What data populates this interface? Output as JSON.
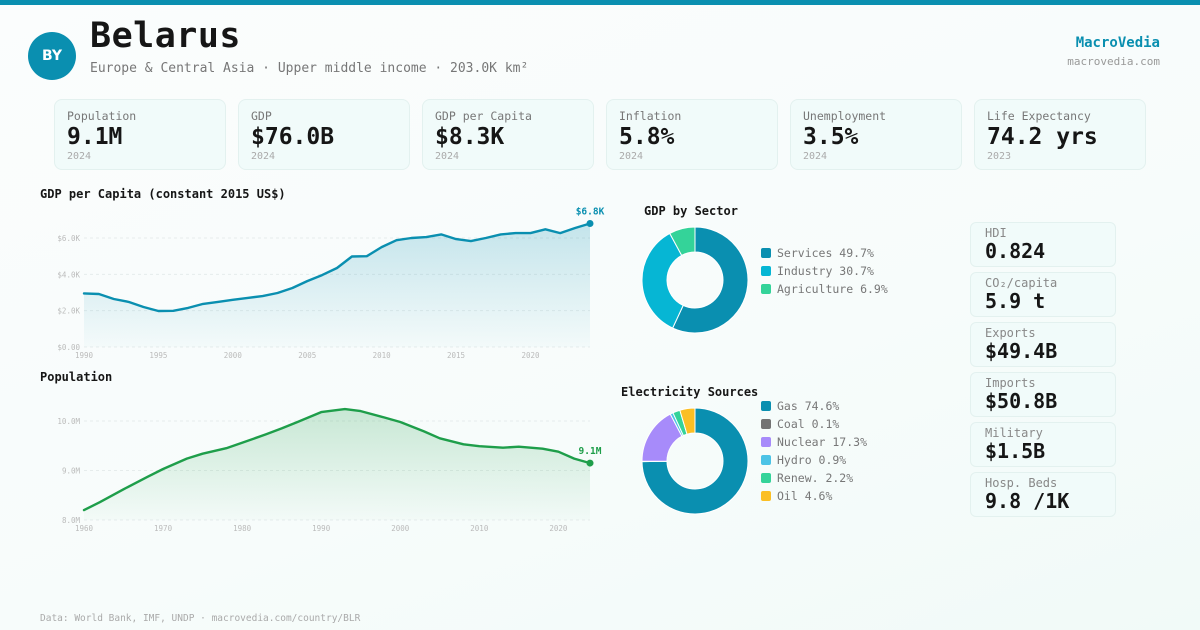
{
  "header": {
    "country_code": "BY",
    "country_name": "Belarus",
    "subtitle": "Europe & Central Asia · Upper middle income · 203.0K km²",
    "brand": "MacroVedia",
    "brand_url": "macrovedia.com",
    "accent_color": "#0a8fb0"
  },
  "kpis": [
    {
      "label": "Population",
      "value": "9.1M",
      "year": "2024"
    },
    {
      "label": "GDP",
      "value": "$76.0B",
      "year": "2024"
    },
    {
      "label": "GDP per Capita",
      "value": "$8.3K",
      "year": "2024"
    },
    {
      "label": "Inflation",
      "value": "5.8%",
      "year": "2024"
    },
    {
      "label": "Unemployment",
      "value": "3.5%",
      "year": "2024"
    },
    {
      "label": "Life Expectancy",
      "value": "74.2 yrs",
      "year": "2023"
    }
  ],
  "side_stats": [
    {
      "label": "HDI",
      "value": "0.824"
    },
    {
      "label": "CO₂/capita",
      "value": "5.9 t"
    },
    {
      "label": "Exports",
      "value": "$49.4B"
    },
    {
      "label": "Imports",
      "value": "$50.8B"
    },
    {
      "label": "Military",
      "value": "$1.5B"
    },
    {
      "label": "Hosp. Beds",
      "value": "9.8 /1K"
    }
  ],
  "footer": "Data: World Bank, IMF, UNDP · macrovedia.com/country/BLR",
  "chart_data": [
    {
      "id": "gdp_per_capita",
      "type": "area",
      "title": "GDP per Capita (constant 2015 US$)",
      "color": "#0a8fb0",
      "x": [
        1990,
        1991,
        1992,
        1993,
        1994,
        1995,
        1996,
        1997,
        1998,
        1999,
        2000,
        2001,
        2002,
        2003,
        2004,
        2005,
        2006,
        2007,
        2008,
        2009,
        2010,
        2011,
        2012,
        2013,
        2014,
        2015,
        2016,
        2017,
        2018,
        2019,
        2020,
        2021,
        2022,
        2023,
        2024
      ],
      "values": [
        2950,
        2920,
        2640,
        2480,
        2200,
        1980,
        1990,
        2150,
        2370,
        2480,
        2600,
        2700,
        2800,
        2970,
        3250,
        3630,
        3960,
        4350,
        4980,
        5000,
        5500,
        5880,
        6000,
        6050,
        6200,
        5940,
        5830,
        6000,
        6200,
        6270,
        6270,
        6480,
        6270,
        6550,
        6800
      ],
      "xticks": [
        "1990",
        "1995",
        "2000",
        "2005",
        "2010",
        "2015",
        "2020"
      ],
      "yticks": [
        "$0.00",
        "$2.0K",
        "$4.0K",
        "$6.0K"
      ],
      "ylim": [
        0,
        6000
      ],
      "end_label": "$6.8K",
      "grid": true
    },
    {
      "id": "population",
      "type": "area",
      "title": "Population",
      "color": "#1e9e4a",
      "x": [
        1960,
        1962,
        1965,
        1968,
        1970,
        1973,
        1975,
        1978,
        1980,
        1983,
        1985,
        1987,
        1990,
        1993,
        1995,
        1998,
        2000,
        2003,
        2005,
        2008,
        2010,
        2013,
        2015,
        2018,
        2020,
        2022,
        2024
      ],
      "values": [
        8.2,
        8.36,
        8.62,
        8.87,
        9.03,
        9.24,
        9.34,
        9.45,
        9.56,
        9.73,
        9.85,
        9.98,
        10.18,
        10.24,
        10.2,
        10.07,
        9.98,
        9.79,
        9.65,
        9.53,
        9.49,
        9.46,
        9.48,
        9.44,
        9.38,
        9.24,
        9.15
      ],
      "xticks": [
        "1960",
        "1970",
        "1980",
        "1990",
        "2000",
        "2010",
        "2020"
      ],
      "yticks": [
        "8.0M",
        "9.0M",
        "10.0M"
      ],
      "ylim": [
        8.0,
        10.0
      ],
      "end_label": "9.1M",
      "grid": true
    },
    {
      "id": "gdp_by_sector",
      "type": "pie",
      "title": "GDP by Sector",
      "slices": [
        {
          "label": "Services",
          "value": 49.7,
          "display": "Services 49.7%",
          "color": "#0a8fb0"
        },
        {
          "label": "Industry",
          "value": 30.7,
          "display": "Industry 30.7%",
          "color": "#06b6d4"
        },
        {
          "label": "Agriculture",
          "value": 6.9,
          "display": "Agriculture 6.9%",
          "color": "#34d399"
        }
      ]
    },
    {
      "id": "electricity_sources",
      "type": "pie",
      "title": "Electricity Sources",
      "slices": [
        {
          "label": "Gas",
          "value": 74.6,
          "display": "Gas 74.6%",
          "color": "#0a8fb0"
        },
        {
          "label": "Coal",
          "value": 0.1,
          "display": "Coal 0.1%",
          "color": "#737373"
        },
        {
          "label": "Nuclear",
          "value": 17.3,
          "display": "Nuclear 17.3%",
          "color": "#a78bfa"
        },
        {
          "label": "Hydro",
          "value": 0.9,
          "display": "Hydro 0.9%",
          "color": "#4cc3e6"
        },
        {
          "label": "Renew.",
          "value": 2.2,
          "display": "Renew. 2.2%",
          "color": "#34d399"
        },
        {
          "label": "Oil",
          "value": 4.6,
          "display": "Oil 4.6%",
          "color": "#fbbf24"
        }
      ]
    }
  ]
}
